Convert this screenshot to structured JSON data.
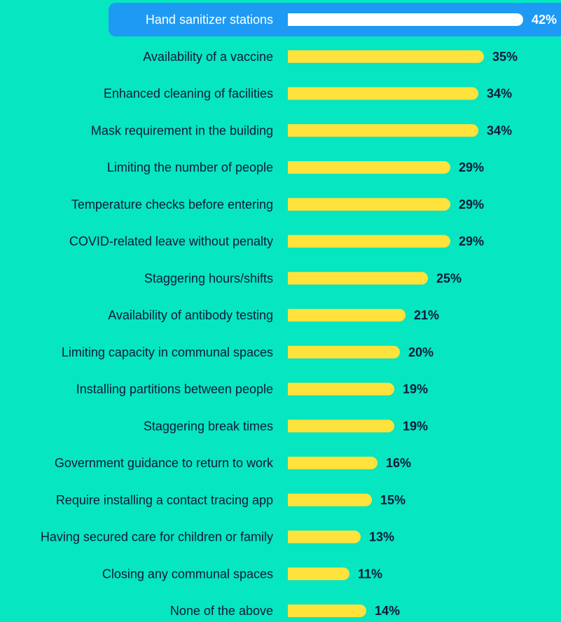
{
  "chart_data": {
    "type": "bar",
    "orientation": "horizontal",
    "categories": [
      "Hand sanitizer stations",
      "Availability of a vaccine",
      "Enhanced cleaning of facilities",
      "Mask requirement in the building",
      "Limiting the number of people",
      "Temperature checks before entering",
      "COVID-related leave without penalty",
      "Staggering hours/shifts",
      "Availability of antibody testing",
      "Limiting capacity in communal spaces",
      "Installing partitions between people",
      "Staggering break times",
      "Government guidance to return to work",
      "Require installing a contact tracing app",
      "Having secured care for children or family",
      "Closing any communal spaces",
      "None of the above"
    ],
    "values": [
      42,
      35,
      34,
      34,
      29,
      29,
      29,
      25,
      21,
      20,
      19,
      19,
      16,
      15,
      13,
      11,
      14
    ],
    "value_labels": [
      "42%",
      "35%",
      "34%",
      "34%",
      "29%",
      "29%",
      "29%",
      "25%",
      "21%",
      "20%",
      "19%",
      "19%",
      "16%",
      "15%",
      "13%",
      "11%",
      "14%"
    ],
    "highlighted_index": 0,
    "grid": false,
    "legend": "none",
    "colors": {
      "background": "#06E6C0",
      "bar": "#FFE23C",
      "highlight_band": "#1E9AF5",
      "highlight_bar": "#FFFFFF",
      "text": "#0D1A3A",
      "highlight_text": "#FFFFFF"
    }
  }
}
